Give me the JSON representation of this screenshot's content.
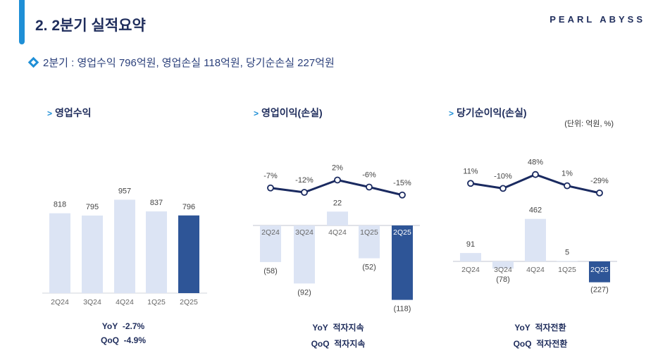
{
  "header": {
    "title": "2. 2분기 실적요약",
    "logo": "PEARL ABYSS"
  },
  "summary": {
    "text": "2분기 : 영업수익 796억원, 영업손실 118억원, 당기순손실 227억원"
  },
  "unit_label": "(단위: 억원, %)",
  "colors": {
    "highlight": "#2e5597",
    "normal": "#dce4f4",
    "line": "#1a2a60",
    "accent": "#1f8fd6"
  },
  "chart_data": [
    {
      "type": "bar",
      "title": "영업수익",
      "categories": [
        "2Q24",
        "3Q24",
        "4Q24",
        "1Q25",
        "2Q25"
      ],
      "values": [
        818,
        795,
        957,
        837,
        796
      ],
      "value_labels": [
        "818",
        "795",
        "957",
        "837",
        "796"
      ],
      "footer": [
        {
          "label": "YoY",
          "value": "-2.7%"
        },
        {
          "label": "QoQ",
          "value": "-4.9%"
        }
      ]
    },
    {
      "type": "bar",
      "title": "영업이익(손실)",
      "categories": [
        "2Q24",
        "3Q24",
        "4Q24",
        "1Q25",
        "2Q25"
      ],
      "values": [
        -58,
        -92,
        22,
        -52,
        -118
      ],
      "value_labels": [
        "(58)",
        "(92)",
        "22",
        "(52)",
        "(118)"
      ],
      "margin_series": {
        "values": [
          -7,
          -12,
          2,
          -6,
          -15
        ],
        "labels": [
          "-7%",
          "-12%",
          "2%",
          "-6%",
          "-15%"
        ]
      },
      "footer": [
        {
          "label": "YoY",
          "value": "적자지속"
        },
        {
          "label": "QoQ",
          "value": "적자지속"
        }
      ]
    },
    {
      "type": "bar",
      "title": "당기순이익(손실)",
      "categories": [
        "2Q24",
        "3Q24",
        "4Q24",
        "1Q25",
        "2Q25"
      ],
      "values": [
        91,
        -78,
        462,
        5,
        -227
      ],
      "value_labels": [
        "91",
        "(78)",
        "462",
        "5",
        "(227)"
      ],
      "margin_series": {
        "values": [
          11,
          -10,
          48,
          1,
          -29
        ],
        "labels": [
          "11%",
          "-10%",
          "48%",
          "1%",
          "-29%"
        ]
      },
      "footer": [
        {
          "label": "YoY",
          "value": "적자전환"
        },
        {
          "label": "QoQ",
          "value": "적자전환"
        }
      ]
    }
  ]
}
